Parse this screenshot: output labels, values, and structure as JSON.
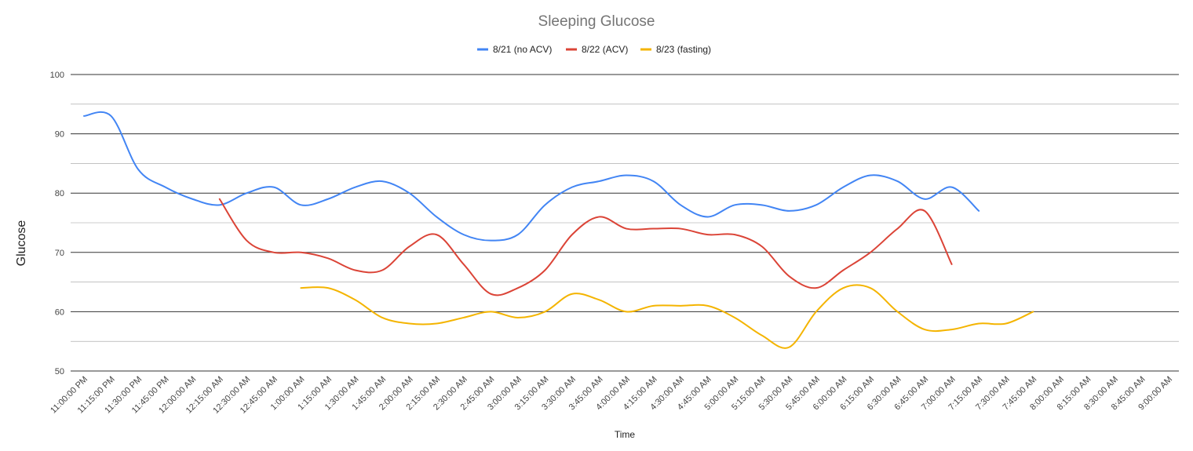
{
  "chart_data": {
    "type": "line",
    "title": "Sleeping Glucose",
    "xlabel": "Time",
    "ylabel": "Glucose",
    "ylim": [
      50,
      100
    ],
    "yticks": [
      50,
      60,
      70,
      80,
      90,
      100
    ],
    "grid": true,
    "legend_position": "top",
    "categories": [
      "11:00:00 PM",
      "11:15:00 PM",
      "11:30:00 PM",
      "11:45:00 PM",
      "12:00:00 AM",
      "12:15:00 AM",
      "12:30:00 AM",
      "12:45:00 AM",
      "1:00:00 AM",
      "1:15:00 AM",
      "1:30:00 AM",
      "1:45:00 AM",
      "2:00:00 AM",
      "2:15:00 AM",
      "2:30:00 AM",
      "2:45:00 AM",
      "3:00:00 AM",
      "3:15:00 AM",
      "3:30:00 AM",
      "3:45:00 AM",
      "4:00:00 AM",
      "4:15:00 AM",
      "4:30:00 AM",
      "4:45:00 AM",
      "5:00:00 AM",
      "5:15:00 AM",
      "5:30:00 AM",
      "5:45:00 AM",
      "6:00:00 AM",
      "6:15:00 AM",
      "6:30:00 AM",
      "6:45:00 AM",
      "7:00:00 AM",
      "7:15:00 AM",
      "7:30:00 AM",
      "7:45:00 AM",
      "8:00:00 AM",
      "8:15:00 AM",
      "8:30:00 AM",
      "8:45:00 AM",
      "9:00:00 AM"
    ],
    "series": [
      {
        "name": "8/21 (no ACV)",
        "color": "#4285f4",
        "values": [
          93,
          93,
          84,
          81,
          79,
          78,
          80,
          81,
          78,
          79,
          81,
          82,
          80,
          76,
          73,
          72,
          73,
          78,
          81,
          82,
          83,
          82,
          78,
          76,
          78,
          78,
          77,
          78,
          81,
          83,
          82,
          79,
          81,
          77,
          null,
          null,
          null,
          null,
          null,
          null,
          null
        ]
      },
      {
        "name": "8/22 (ACV)",
        "color": "#db4437",
        "values": [
          null,
          null,
          null,
          null,
          null,
          79,
          72,
          70,
          70,
          69,
          67,
          67,
          71,
          73,
          68,
          63,
          64,
          67,
          73,
          76,
          74,
          74,
          74,
          73,
          73,
          71,
          66,
          64,
          67,
          70,
          74,
          77,
          68,
          null,
          null,
          null,
          null,
          null,
          null,
          null,
          null
        ]
      },
      {
        "name": "8/23 (fasting)",
        "color": "#f4b400",
        "values": [
          null,
          null,
          null,
          null,
          null,
          null,
          null,
          null,
          64,
          64,
          62,
          59,
          58,
          58,
          59,
          60,
          59,
          60,
          63,
          62,
          60,
          61,
          61,
          61,
          59,
          56,
          54,
          60,
          64,
          64,
          60,
          57,
          57,
          58,
          58,
          60,
          null,
          null,
          null,
          null,
          null
        ]
      }
    ]
  }
}
